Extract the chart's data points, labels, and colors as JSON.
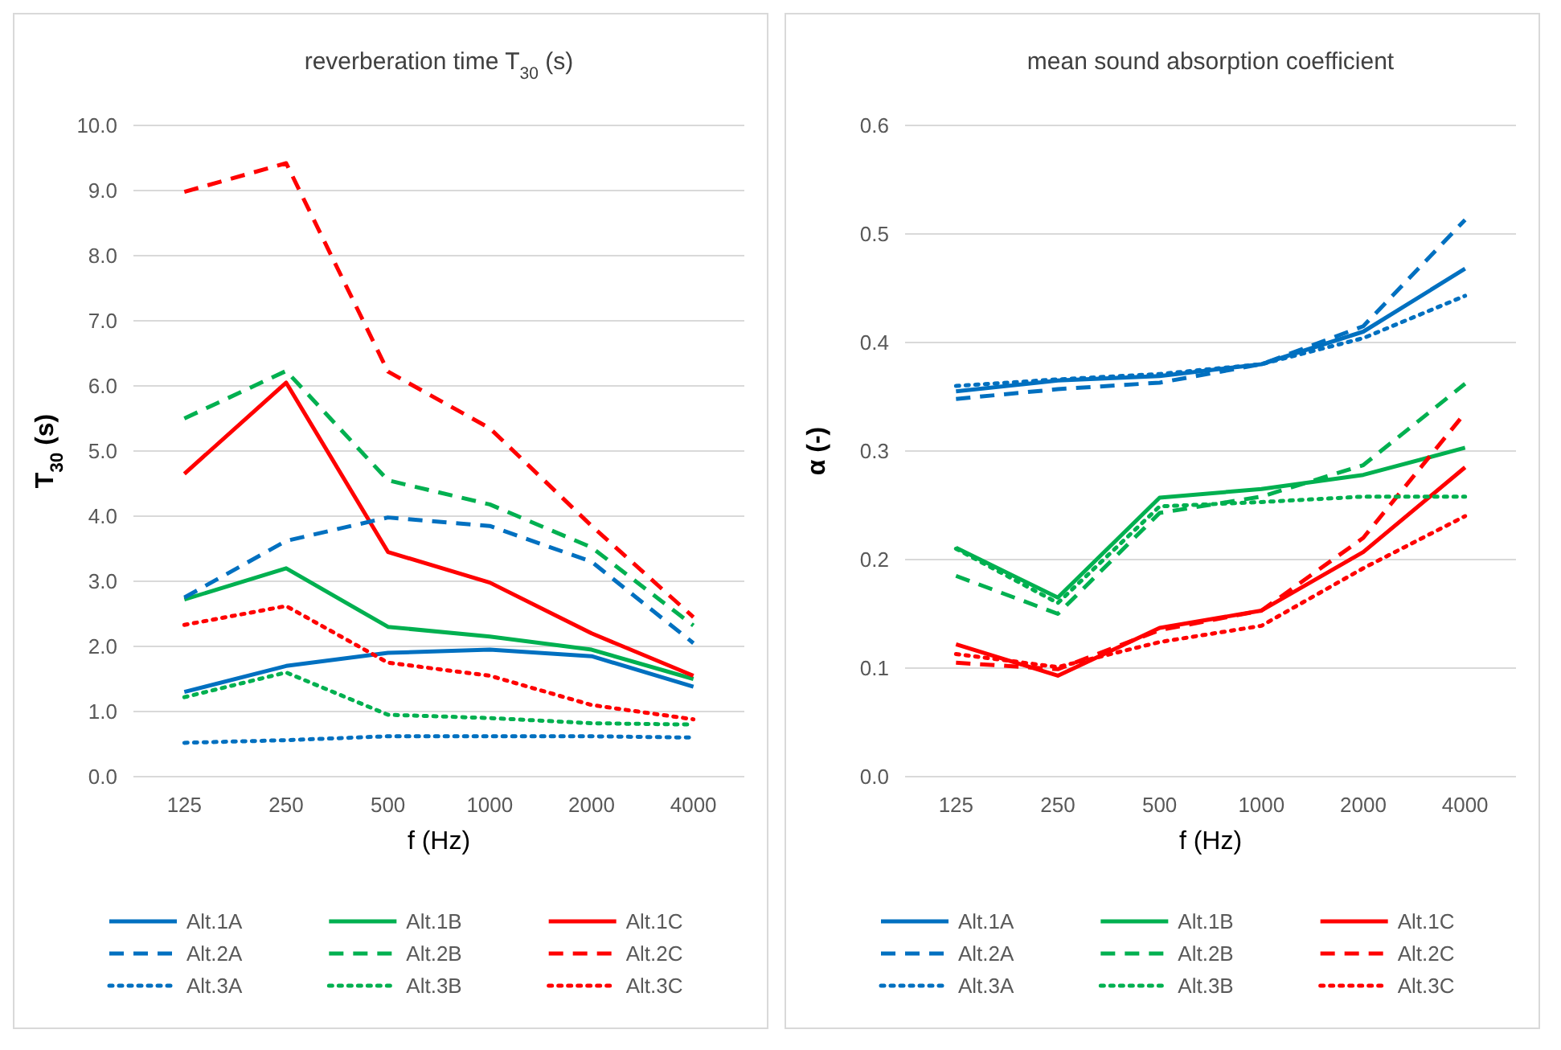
{
  "chart_data": [
    {
      "type": "line",
      "title": "reverberation time T$_{30}$ (s)",
      "xlabel": "f (Hz)",
      "ylabel": "T$_{30}$ (s)",
      "categories": [
        "125",
        "250",
        "500",
        "1000",
        "2000",
        "4000"
      ],
      "ylim": [
        0,
        10
      ],
      "yticks": [
        {
          "value": 0,
          "label": "0.0"
        },
        {
          "value": 1,
          "label": "1.0"
        },
        {
          "value": 2,
          "label": "2.0"
        },
        {
          "value": 3,
          "label": "3.0"
        },
        {
          "value": 4,
          "label": "4.0"
        },
        {
          "value": 5,
          "label": "5.0"
        },
        {
          "value": 6,
          "label": "6.0"
        },
        {
          "value": 7,
          "label": "7.0"
        },
        {
          "value": 8,
          "label": "8.0"
        },
        {
          "value": 9,
          "label": "9.0"
        },
        {
          "value": 10,
          "label": "10.0"
        }
      ],
      "grid": "y",
      "legend": "bottom",
      "marker": "none",
      "series": [
        {
          "name": "Alt.1A",
          "color": "#0070c0",
          "line_style": "solid",
          "values": [
            1.3,
            1.7,
            1.9,
            1.95,
            1.85,
            1.38
          ]
        },
        {
          "name": "Alt.1B",
          "color": "#00b050",
          "line_style": "solid",
          "values": [
            2.72,
            3.2,
            2.3,
            2.15,
            1.95,
            1.5
          ]
        },
        {
          "name": "Alt.1C",
          "color": "#ff0000",
          "line_style": "solid",
          "values": [
            4.65,
            6.05,
            3.45,
            2.98,
            2.2,
            1.55
          ]
        },
        {
          "name": "Alt.2A",
          "color": "#0070c0",
          "line_style": "dashed",
          "values": [
            2.75,
            3.62,
            3.98,
            3.85,
            3.3,
            2.05
          ]
        },
        {
          "name": "Alt.2B",
          "color": "#00b050",
          "line_style": "dashed",
          "values": [
            5.5,
            6.23,
            4.55,
            4.18,
            3.52,
            2.32
          ]
        },
        {
          "name": "Alt.2C",
          "color": "#ff0000",
          "line_style": "dashed",
          "values": [
            8.98,
            9.42,
            6.22,
            5.35,
            3.85,
            2.45
          ]
        },
        {
          "name": "Alt.3A",
          "color": "#0070c0",
          "line_style": "dotted",
          "values": [
            0.52,
            0.56,
            0.62,
            0.62,
            0.62,
            0.6
          ]
        },
        {
          "name": "Alt.3B",
          "color": "#00b050",
          "line_style": "dotted",
          "values": [
            1.22,
            1.6,
            0.95,
            0.9,
            0.82,
            0.8
          ]
        },
        {
          "name": "Alt.3C",
          "color": "#ff0000",
          "line_style": "dotted",
          "values": [
            2.33,
            2.62,
            1.75,
            1.55,
            1.1,
            0.88
          ]
        }
      ]
    },
    {
      "type": "line",
      "title": "mean sound absorption coefficient",
      "xlabel": "f (Hz)",
      "ylabel": "α (-)",
      "categories": [
        "125",
        "250",
        "500",
        "1000",
        "2000",
        "4000"
      ],
      "ylim": [
        0,
        0.6
      ],
      "yticks": [
        {
          "value": 0,
          "label": "0.0"
        },
        0.1,
        0.2,
        0.3,
        0.4,
        0.5,
        0.6
      ],
      "grid": "y",
      "legend": "bottom",
      "marker": "none",
      "series": [
        {
          "name": "Alt.1A",
          "color": "#0070c0",
          "line_style": "solid",
          "values": [
            0.355,
            0.365,
            0.369,
            0.38,
            0.41,
            0.468
          ]
        },
        {
          "name": "Alt.1B",
          "color": "#00b050",
          "line_style": "solid",
          "values": [
            0.211,
            0.165,
            0.257,
            0.265,
            0.278,
            0.303
          ]
        },
        {
          "name": "Alt.1C",
          "color": "#ff0000",
          "line_style": "solid",
          "values": [
            0.122,
            0.093,
            0.137,
            0.153,
            0.207,
            0.285
          ]
        },
        {
          "name": "Alt.2A",
          "color": "#0070c0",
          "line_style": "dashed",
          "values": [
            0.348,
            0.357,
            0.363,
            0.38,
            0.415,
            0.513
          ]
        },
        {
          "name": "Alt.2B",
          "color": "#00b050",
          "line_style": "dashed",
          "values": [
            0.185,
            0.15,
            0.243,
            0.258,
            0.287,
            0.362
          ]
        },
        {
          "name": "Alt.2C",
          "color": "#ff0000",
          "line_style": "dashed",
          "values": [
            0.105,
            0.099,
            0.135,
            0.153,
            0.22,
            0.335
          ]
        },
        {
          "name": "Alt.3A",
          "color": "#0070c0",
          "line_style": "dotted",
          "values": [
            0.36,
            0.366,
            0.371,
            0.38,
            0.404,
            0.443
          ]
        },
        {
          "name": "Alt.3B",
          "color": "#00b050",
          "line_style": "dotted",
          "values": [
            0.21,
            0.16,
            0.249,
            0.253,
            0.258,
            0.258
          ]
        },
        {
          "name": "Alt.3C",
          "color": "#ff0000",
          "line_style": "dotted",
          "values": [
            0.113,
            0.101,
            0.124,
            0.139,
            0.192,
            0.24
          ]
        }
      ]
    }
  ]
}
